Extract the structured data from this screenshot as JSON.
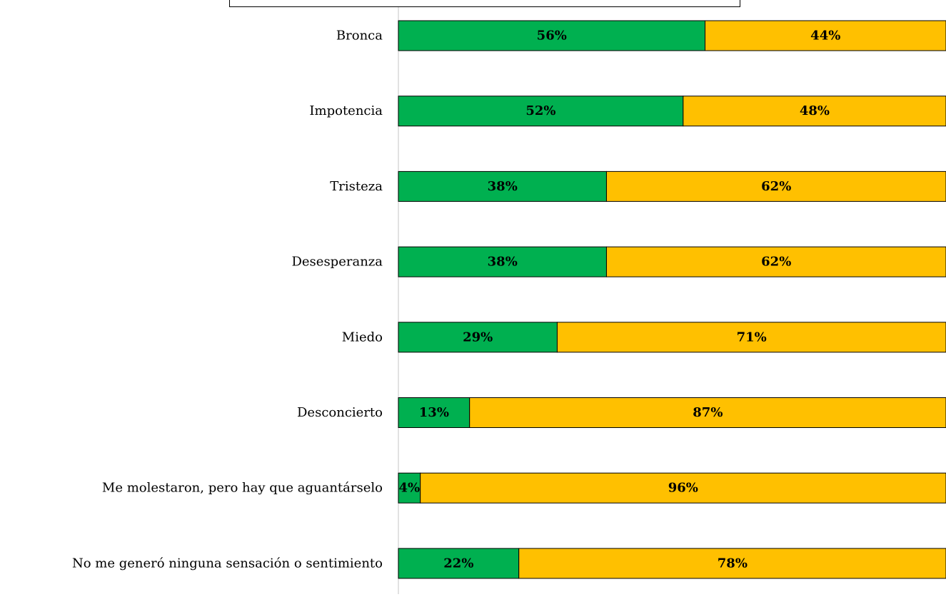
{
  "chart_data": {
    "type": "bar",
    "orientation": "horizontal",
    "stacked": true,
    "percent_stacked": true,
    "categories": [
      "Bronca",
      "Impotencia",
      "Tristeza",
      "Desesperanza",
      "Miedo",
      "Desconcierto",
      "Me molestaron, pero hay que aguantárselo",
      "No me generó ninguna sensación o sentimiento"
    ],
    "series": [
      {
        "color": "#00B050",
        "values": [
          56,
          52,
          38,
          38,
          29,
          13,
          4,
          22
        ]
      },
      {
        "color": "#FFC000",
        "values": [
          44,
          48,
          62,
          62,
          71,
          87,
          96,
          78
        ]
      }
    ],
    "data_labels": [
      [
        "56%",
        "52%",
        "38%",
        "38%",
        "29%",
        "13%",
        "4%",
        "22%"
      ],
      [
        "44%",
        "48%",
        "62%",
        "62%",
        "71%",
        "87%",
        "96%",
        "78%"
      ]
    ],
    "xlim": [
      0,
      100
    ],
    "grid": false
  }
}
